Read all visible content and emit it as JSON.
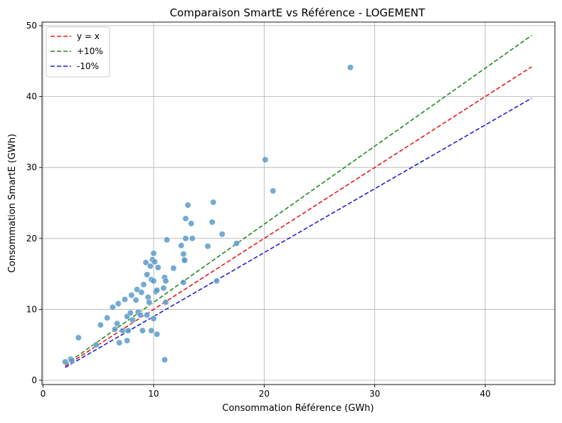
{
  "chart_data": {
    "type": "scatter",
    "title": "Comparaison SmartE vs Référence - LOGEMENT",
    "xlabel": "Consommation Référence (GWh)",
    "ylabel": "Consommation SmartE (GWh)",
    "xlim": [
      -0.1,
      46.3
    ],
    "ylim": [
      -0.6,
      50.5
    ],
    "grid": true,
    "legend_position": "top-left",
    "x_ticks": [
      "0",
      "10",
      "20",
      "30",
      "40"
    ],
    "y_ticks": [
      "0",
      "10",
      "20",
      "30",
      "40",
      "50"
    ],
    "point_color": "#5b9bc9",
    "lines": [
      {
        "name": "y = x",
        "color": "#e31a1c",
        "slope": 1.0,
        "x": [
          2.0,
          44.2
        ]
      },
      {
        "name": "+10%",
        "color": "#1f8a1f",
        "slope": 1.1,
        "x": [
          2.0,
          44.2
        ]
      },
      {
        "name": "-10%",
        "color": "#1f1fd6",
        "slope": 0.9,
        "x": [
          2.0,
          44.2
        ]
      }
    ],
    "points": [
      [
        2.0,
        2.6
      ],
      [
        2.5,
        3.0
      ],
      [
        2.6,
        2.8
      ],
      [
        3.2,
        6.0
      ],
      [
        4.8,
        5.0
      ],
      [
        5.2,
        7.8
      ],
      [
        5.8,
        8.8
      ],
      [
        6.3,
        10.3
      ],
      [
        6.5,
        7.2
      ],
      [
        6.7,
        8.0
      ],
      [
        6.8,
        10.8
      ],
      [
        6.9,
        5.3
      ],
      [
        7.2,
        7.0
      ],
      [
        7.4,
        11.4
      ],
      [
        7.6,
        5.6
      ],
      [
        7.6,
        9.0
      ],
      [
        7.7,
        7.0
      ],
      [
        7.9,
        9.5
      ],
      [
        8.0,
        12.0
      ],
      [
        8.1,
        8.5
      ],
      [
        8.4,
        11.3
      ],
      [
        8.5,
        12.8
      ],
      [
        8.6,
        9.6
      ],
      [
        8.8,
        9.2
      ],
      [
        8.9,
        12.4
      ],
      [
        9.0,
        7.0
      ],
      [
        9.1,
        13.5
      ],
      [
        9.3,
        16.6
      ],
      [
        9.4,
        9.2
      ],
      [
        9.4,
        14.9
      ],
      [
        9.5,
        11.7
      ],
      [
        9.6,
        11.0
      ],
      [
        9.7,
        16.1
      ],
      [
        9.8,
        14.2
      ],
      [
        9.8,
        7.0
      ],
      [
        9.9,
        17.0
      ],
      [
        10.0,
        17.9
      ],
      [
        10.0,
        8.7
      ],
      [
        10.0,
        14.0
      ],
      [
        10.1,
        16.7
      ],
      [
        10.2,
        12.5
      ],
      [
        10.3,
        12.7
      ],
      [
        10.3,
        6.5
      ],
      [
        10.4,
        15.9
      ],
      [
        10.9,
        13.0
      ],
      [
        11.0,
        14.5
      ],
      [
        11.0,
        2.9
      ],
      [
        11.1,
        14.0
      ],
      [
        11.1,
        11.0
      ],
      [
        11.2,
        19.8
      ],
      [
        11.8,
        15.8
      ],
      [
        12.5,
        19.0
      ],
      [
        12.7,
        13.8
      ],
      [
        12.7,
        17.8
      ],
      [
        12.8,
        17.0
      ],
      [
        12.8,
        16.9
      ],
      [
        12.9,
        20.0
      ],
      [
        12.9,
        22.8
      ],
      [
        13.1,
        24.7
      ],
      [
        13.4,
        22.1
      ],
      [
        13.5,
        20.0
      ],
      [
        14.9,
        18.9
      ],
      [
        15.3,
        22.3
      ],
      [
        15.4,
        25.1
      ],
      [
        15.7,
        14.0
      ],
      [
        16.2,
        20.6
      ],
      [
        17.5,
        19.3
      ],
      [
        20.1,
        31.1
      ],
      [
        20.8,
        26.7
      ],
      [
        27.8,
        44.1
      ]
    ]
  }
}
